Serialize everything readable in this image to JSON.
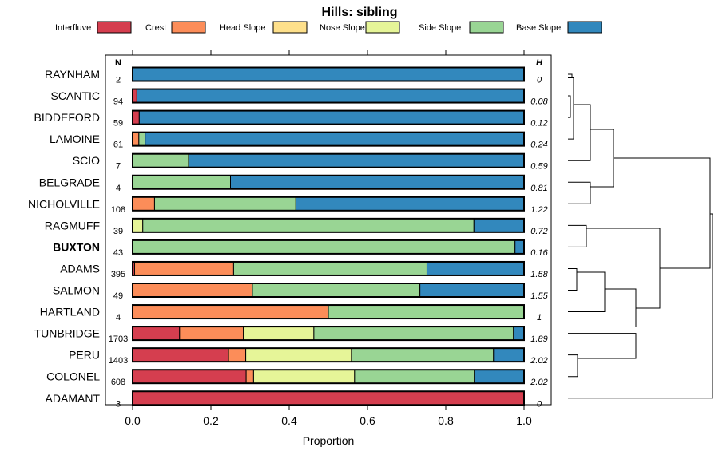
{
  "chart_data": {
    "type": "bar",
    "orientation": "horizontal",
    "stacked": true,
    "title": "Hills: sibling",
    "xlabel": "Proportion",
    "xlim": [
      0,
      1
    ],
    "x_ticks": [
      "0.0",
      "0.2",
      "0.4",
      "0.6",
      "0.8",
      "1.0"
    ],
    "n_header": "N",
    "h_header": "H",
    "highlight": "BUXTON",
    "categories": [
      "RAYNHAM",
      "SCANTIC",
      "BIDDEFORD",
      "LAMOINE",
      "SCIO",
      "BELGRADE",
      "NICHOLVILLE",
      "RAGMUFF",
      "BUXTON",
      "ADAMS",
      "SALMON",
      "HARTLAND",
      "TUNBRIDGE",
      "PERU",
      "COLONEL",
      "ADAMANT"
    ],
    "n": [
      "2",
      "94",
      "59",
      "61",
      "7",
      "4",
      "108",
      "39",
      "43",
      "395",
      "49",
      "4",
      "1703",
      "1403",
      "608",
      "3"
    ],
    "h": [
      "0",
      "0.08",
      "0.12",
      "0.24",
      "0.59",
      "0.81",
      "1.22",
      "0.72",
      "0.16",
      "1.58",
      "1.55",
      "1",
      "1.89",
      "2.02",
      "2.02",
      "0"
    ],
    "series": [
      {
        "name": "Interfluve",
        "color": "#d53e4f",
        "values": [
          0,
          0.011,
          0.017,
          0,
          0,
          0,
          0,
          0,
          0,
          0.005,
          0,
          0,
          0.12,
          0.245,
          0.29,
          1.0
        ]
      },
      {
        "name": "Crest",
        "color": "#fc8d59",
        "values": [
          0,
          0,
          0,
          0.016,
          0,
          0,
          0.056,
          0,
          0,
          0.253,
          0.306,
          0.5,
          0.163,
          0.044,
          0.019,
          0
        ]
      },
      {
        "name": "Head Slope",
        "color": "#fee08b",
        "values": [
          0,
          0,
          0,
          0,
          0,
          0,
          0,
          0,
          0,
          0,
          0,
          0,
          0,
          0,
          0,
          0
        ]
      },
      {
        "name": "Nose Slope",
        "color": "#e6f598",
        "values": [
          0,
          0,
          0,
          0,
          0,
          0,
          0,
          0.026,
          0,
          0,
          0,
          0,
          0.18,
          0.27,
          0.258,
          0
        ]
      },
      {
        "name": "Side Slope",
        "color": "#99d594",
        "values": [
          0,
          0,
          0,
          0.016,
          0.143,
          0.25,
          0.361,
          0.846,
          0.977,
          0.494,
          0.428,
          0.5,
          0.51,
          0.363,
          0.306,
          0
        ]
      },
      {
        "name": "Base Slope",
        "color": "#3288bd",
        "values": [
          1.0,
          0.989,
          0.983,
          0.968,
          0.857,
          0.75,
          0.583,
          0.128,
          0.023,
          0.248,
          0.266,
          0,
          0.027,
          0.078,
          0.127,
          0
        ]
      }
    ]
  }
}
